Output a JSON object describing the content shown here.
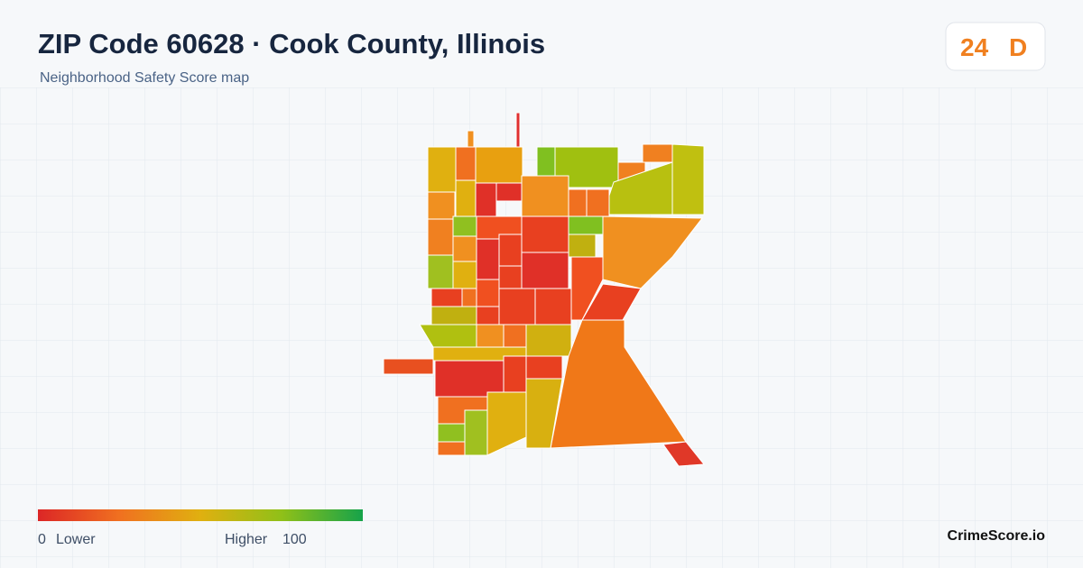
{
  "header": {
    "title": "ZIP Code 60628 · Cook County, Illinois",
    "subtitle": "Neighborhood Safety Score map"
  },
  "badge": {
    "score": "24",
    "grade": "D"
  },
  "legend": {
    "min": "0",
    "min_label": "Lower",
    "max_label": "Higher",
    "max": "100"
  },
  "footer": {
    "brand": "CrimeScore.io"
  }
}
